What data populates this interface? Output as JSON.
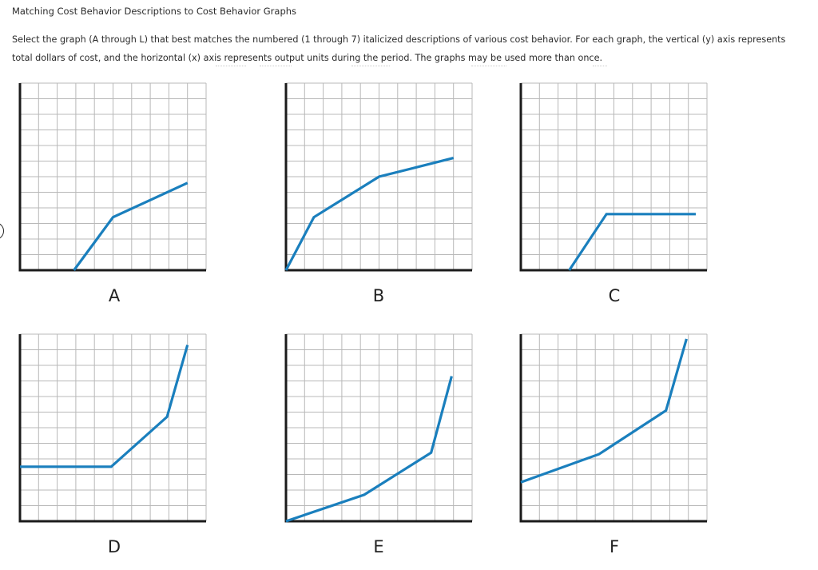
{
  "question": {
    "title": "Matching Cost Behavior Descriptions to Cost Behavior Graphs",
    "instruction_line1": "Select the graph (A through L) that best matches the numbered (1 through 7) italicized descriptions of various cost behavior. For each graph, the vertical (y) axis represents",
    "instruction_line2": "total dollars of cost, and the horizontal (x) axis represents output units during the period. The graphs may be used more than once."
  },
  "graphs": [
    {
      "label": "A",
      "points": [
        [
          2.9,
          0
        ],
        [
          5,
          3.4
        ],
        [
          9,
          5.6
        ]
      ]
    },
    {
      "label": "B",
      "points": [
        [
          0,
          0
        ],
        [
          1.5,
          3.4
        ],
        [
          5,
          6.0
        ],
        [
          9,
          7.2
        ]
      ]
    },
    {
      "label": "C",
      "points": [
        [
          2.6,
          0
        ],
        [
          4.6,
          3.6
        ],
        [
          9.4,
          3.6
        ]
      ]
    },
    {
      "label": "D",
      "points": [
        [
          0,
          3.5
        ],
        [
          4.9,
          3.5
        ],
        [
          7.9,
          6.7
        ],
        [
          9,
          11.3
        ]
      ]
    },
    {
      "label": "E",
      "points": [
        [
          0,
          0
        ],
        [
          4.2,
          1.7
        ],
        [
          7.8,
          4.4
        ],
        [
          8.9,
          9.3
        ]
      ]
    },
    {
      "label": "F",
      "points": [
        [
          0,
          2.5
        ],
        [
          4.2,
          4.3
        ],
        [
          7.8,
          7.1
        ],
        [
          8.9,
          11.7
        ]
      ]
    }
  ]
}
